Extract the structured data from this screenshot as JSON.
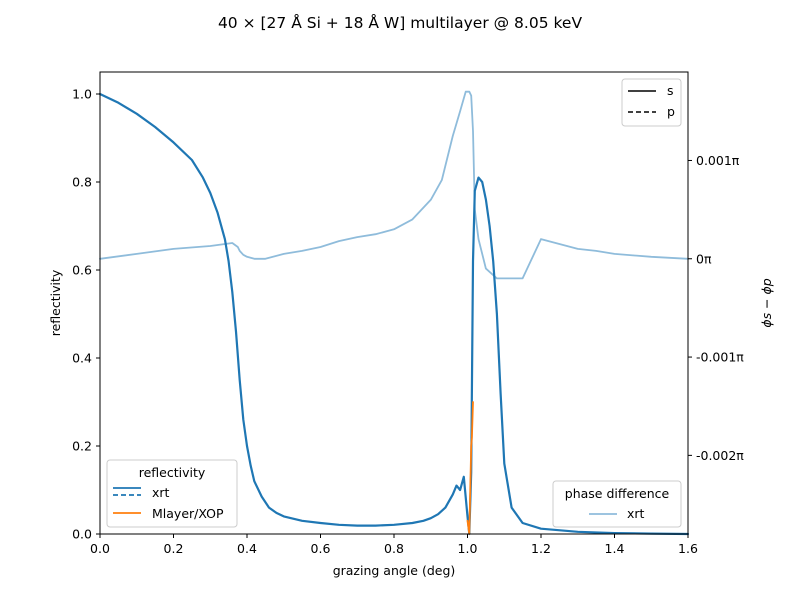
{
  "chart_data": {
    "type": "line",
    "title": "40 × [27 Å Si + 18 Å W] multilayer @ 8.05 keV",
    "xlabel": "grazing angle (deg)",
    "ylabel": "reflectivity",
    "y2label": "ϕs − ϕp",
    "xlim": [
      0,
      1.6
    ],
    "ylim": [
      0,
      1.05
    ],
    "y2lim": [
      -0.0028,
      0.0019
    ],
    "x_ticks": [
      0.0,
      0.2,
      0.4,
      0.6,
      0.8,
      1.0,
      1.2,
      1.4,
      1.6
    ],
    "x_tick_labels": [
      "0.0",
      "0.2",
      "0.4",
      "0.6",
      "0.8",
      "1.0",
      "1.2",
      "1.4",
      "1.6"
    ],
    "y_ticks": [
      0.0,
      0.2,
      0.4,
      0.6,
      0.8,
      1.0
    ],
    "y_tick_labels": [
      "0.0",
      "0.2",
      "0.4",
      "0.6",
      "0.8",
      "1.0"
    ],
    "y2_ticks": [
      0.001,
      0.0,
      -0.001,
      -0.002
    ],
    "y2_tick_labels": [
      "0.001π",
      "0π",
      "-0.001π",
      "-0.002π"
    ],
    "grid": false,
    "colors": {
      "xrt": "#1f77b4",
      "mlayer": "#ff7f0e",
      "phase": "#8fbcdb"
    },
    "series": [
      {
        "name": "xrt",
        "axis": "left",
        "polarization": [
          "s",
          "p"
        ],
        "x": [
          0,
          0.05,
          0.1,
          0.15,
          0.2,
          0.25,
          0.28,
          0.3,
          0.32,
          0.34,
          0.35,
          0.36,
          0.37,
          0.38,
          0.39,
          0.4,
          0.41,
          0.42,
          0.44,
          0.46,
          0.48,
          0.5,
          0.55,
          0.6,
          0.65,
          0.7,
          0.75,
          0.8,
          0.85,
          0.88,
          0.9,
          0.92,
          0.94,
          0.96,
          0.97,
          0.98,
          0.99,
          1.0,
          1.005,
          1.01,
          1.015,
          1.02,
          1.03,
          1.04,
          1.05,
          1.06,
          1.07,
          1.08,
          1.09,
          1.1,
          1.12,
          1.15,
          1.2,
          1.3,
          1.4,
          1.5,
          1.6
        ],
        "y": [
          1.0,
          0.98,
          0.955,
          0.925,
          0.89,
          0.85,
          0.81,
          0.775,
          0.73,
          0.67,
          0.62,
          0.55,
          0.46,
          0.35,
          0.26,
          0.2,
          0.155,
          0.12,
          0.085,
          0.06,
          0.048,
          0.04,
          0.03,
          0.025,
          0.021,
          0.019,
          0.019,
          0.021,
          0.025,
          0.03,
          0.036,
          0.045,
          0.06,
          0.09,
          0.11,
          0.1,
          0.13,
          0.04,
          0.0,
          0.14,
          0.62,
          0.78,
          0.81,
          0.8,
          0.76,
          0.7,
          0.62,
          0.5,
          0.32,
          0.16,
          0.06,
          0.025,
          0.012,
          0.005,
          0.002,
          0.001,
          0.0
        ]
      },
      {
        "name": "Mlayer/XOP",
        "axis": "left",
        "x": [
          1.0,
          1.005,
          1.01,
          1.012,
          1.015
        ],
        "y": [
          0.03,
          0.0,
          0.2,
          0.22,
          0.3
        ]
      },
      {
        "name": "xrt",
        "axis": "right",
        "quantity": "phase difference",
        "x": [
          0.0,
          0.1,
          0.2,
          0.3,
          0.36,
          0.375,
          0.38,
          0.39,
          0.4,
          0.42,
          0.45,
          0.5,
          0.55,
          0.6,
          0.65,
          0.7,
          0.75,
          0.8,
          0.85,
          0.9,
          0.93,
          0.96,
          0.98,
          0.995,
          1.0,
          1.005,
          1.01,
          1.015,
          1.02,
          1.03,
          1.05,
          1.08,
          1.1,
          1.15,
          1.2,
          1.25,
          1.3,
          1.35,
          1.4,
          1.5,
          1.6
        ],
        "y": [
          0.0,
          5e-05,
          0.0001,
          0.00013,
          0.00016,
          0.00012,
          8e-05,
          4e-05,
          2e-05,
          0.0,
          0.0,
          5e-05,
          8e-05,
          0.00012,
          0.00018,
          0.00022,
          0.00025,
          0.0003,
          0.0004,
          0.0006,
          0.0008,
          0.00125,
          0.0015,
          0.0017,
          0.0017,
          0.0017,
          0.00166,
          0.0013,
          0.0005,
          0.0002,
          -0.0001,
          -0.0002,
          -0.0002,
          -0.0002,
          0.0002,
          0.00015,
          0.0001,
          8e-05,
          5e-05,
          2e-05,
          0.0
        ]
      }
    ],
    "legends": [
      {
        "position": "top-right",
        "title": "",
        "entries": [
          {
            "label": "s",
            "style": "solid"
          },
          {
            "label": "p",
            "style": "dashed"
          }
        ]
      },
      {
        "position": "bottom-left",
        "title": "reflectivity",
        "entries": [
          {
            "label": "xrt",
            "style": "solid+dashed"
          },
          {
            "label": "Mlayer/XOP",
            "style": "solid"
          }
        ]
      },
      {
        "position": "bottom-right",
        "title": "phase difference",
        "entries": [
          {
            "label": "xrt",
            "style": "solid"
          }
        ]
      }
    ]
  }
}
